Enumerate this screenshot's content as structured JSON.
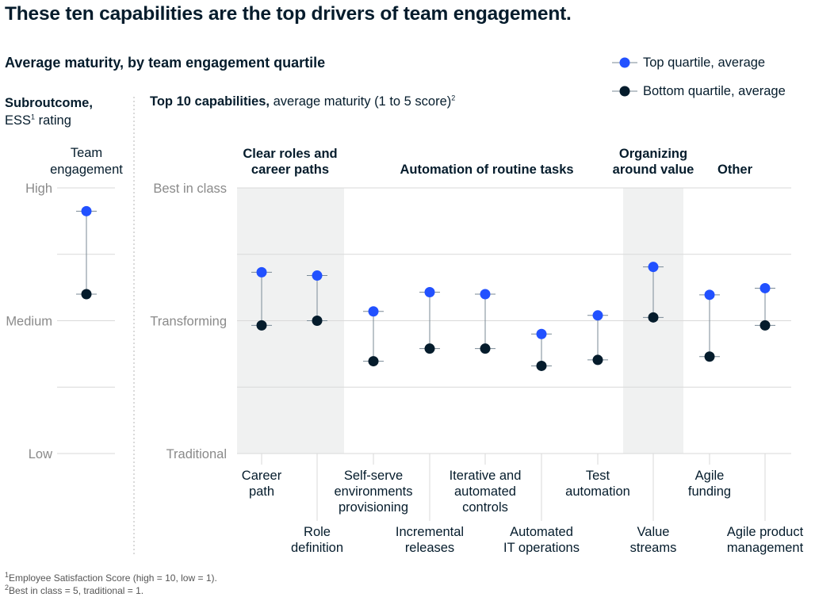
{
  "title": "These ten capabilities are the top drivers of team engagement.",
  "subtitle": "Average maturity, by team engagement quartile",
  "legend": [
    {
      "label": "Top quartile, average",
      "color": "#2251ff"
    },
    {
      "label": "Bottom quartile, average",
      "color": "#051c2c"
    }
  ],
  "left_header": {
    "bold": "Subroutcome,",
    "rest": "rating",
    "ess": "ESS",
    "ess_sup": "1"
  },
  "right_header": {
    "bold": "Top 10 capabilities,",
    "rest": "average maturity (1 to 5 score)",
    "sup": "2"
  },
  "footnotes": [
    {
      "sup": "1",
      "text": "Employee Satisfaction Score (high = 10, low = 1)."
    },
    {
      "sup": "2",
      "text": "Best in class = 5, traditional = 1."
    }
  ],
  "colors": {
    "top": "#2251ff",
    "bottom": "#051c2c",
    "connector": "#7a8a96",
    "band": "#f0f1f1",
    "grid": "#d9d9d9",
    "axis_label": "#8a8a8a"
  },
  "chart_data": [
    {
      "type": "dumbbell",
      "title": "Team engagement",
      "y_tick_labels": [
        "High",
        "Medium",
        "Low"
      ],
      "ylim": [
        1,
        5
      ],
      "series": [
        {
          "name": "Top quartile, average",
          "values": [
            4.65
          ]
        },
        {
          "name": "Bottom quartile, average",
          "values": [
            3.4
          ]
        }
      ],
      "categories": [
        "Team engagement"
      ]
    },
    {
      "type": "dumbbell",
      "y_tick_labels": [
        "Best in class",
        "Transforming",
        "Traditional"
      ],
      "ylim": [
        1,
        5
      ],
      "grid": true,
      "groups": [
        {
          "label": [
            "Clear roles and",
            "career paths"
          ],
          "categories": [
            "Career path",
            "Role definition"
          ],
          "shaded": true
        },
        {
          "label": [
            "Automation of routine tasks"
          ],
          "categories": [
            "Self-serve environments provisioning",
            "Incremental releases",
            "Iterative and automated controls",
            "Automated IT operations",
            "Test automation"
          ],
          "shaded": false
        },
        {
          "label": [
            "Organizing",
            "around value"
          ],
          "categories": [
            "Value streams"
          ],
          "shaded": true
        },
        {
          "label": [
            "Other"
          ],
          "categories": [
            "Agile funding",
            "Agile product management"
          ],
          "shaded": false
        }
      ],
      "categories": [
        "Career path",
        "Role definition",
        "Self-serve environments provisioning",
        "Incremental releases",
        "Iterative and automated controls",
        "Automated IT operations",
        "Test automation",
        "Value streams",
        "Agile funding",
        "Agile product management"
      ],
      "category_label_lines": [
        [
          "Career",
          "path"
        ],
        [
          "Role",
          "definition"
        ],
        [
          "Self-serve",
          "environments",
          "provisioning"
        ],
        [
          "Incremental",
          "releases"
        ],
        [
          "Iterative and",
          "automated",
          "controls"
        ],
        [
          "Automated",
          "IT operations"
        ],
        [
          "Test",
          "automation"
        ],
        [
          "Value",
          "streams"
        ],
        [
          "Agile",
          "funding"
        ],
        [
          "Agile product",
          "management"
        ]
      ],
      "series": [
        {
          "name": "Top quartile, average",
          "values": [
            3.73,
            3.68,
            3.14,
            3.43,
            3.4,
            2.8,
            3.08,
            3.81,
            3.39,
            3.49
          ]
        },
        {
          "name": "Bottom quartile, average",
          "values": [
            2.93,
            3.0,
            2.39,
            2.58,
            2.58,
            2.32,
            2.41,
            3.05,
            2.46,
            2.93
          ]
        }
      ]
    }
  ]
}
